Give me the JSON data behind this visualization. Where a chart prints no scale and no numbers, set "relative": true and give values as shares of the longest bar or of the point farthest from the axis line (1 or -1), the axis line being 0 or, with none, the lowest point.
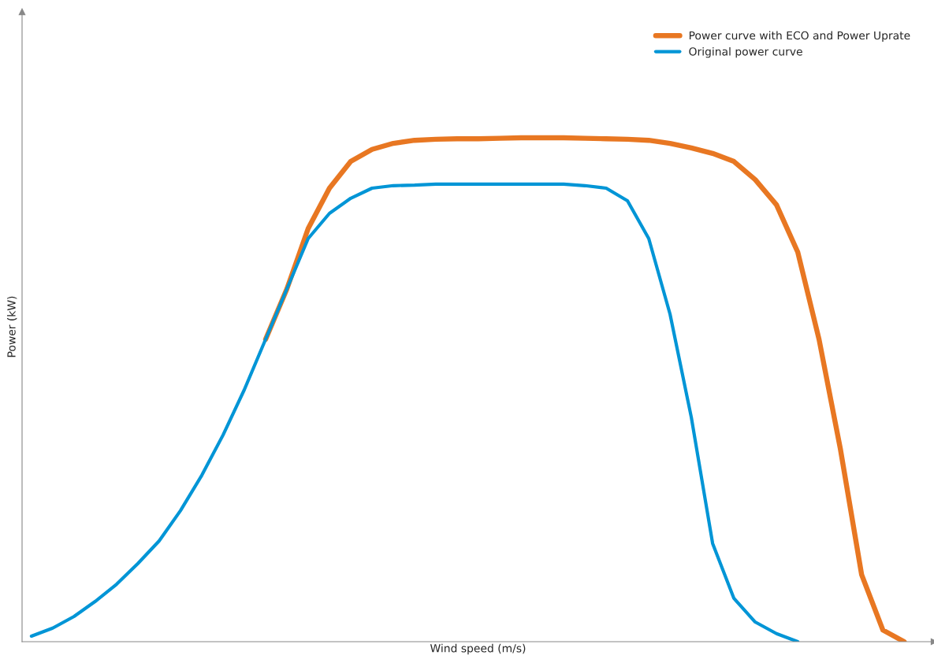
{
  "chart_data": {
    "type": "line",
    "relative": true,
    "xlabel": "Wind speed (m/s)",
    "ylabel": "Power (kW)",
    "legend": "top right",
    "line_style": "solid",
    "marker": "none",
    "categories": [
      null,
      null,
      null,
      null,
      null,
      null,
      null,
      null,
      null,
      null,
      null,
      null,
      null,
      null,
      null,
      null,
      null,
      null,
      null,
      null,
      null,
      null,
      null,
      null,
      null,
      null,
      null,
      null,
      null,
      null,
      null,
      null,
      null,
      null,
      null,
      null,
      null,
      null,
      null,
      null,
      null,
      null
    ],
    "series": [
      {
        "name": "Power curve with ECO and Power Uprate",
        "color": "#e87722",
        "values": [
          null,
          null,
          null,
          null,
          null,
          null,
          null,
          null,
          null,
          null,
          null,
          0.6,
          0.7,
          0.82,
          0.9,
          0.953,
          0.977,
          0.989,
          0.995,
          0.997,
          0.998,
          0.998,
          0.999,
          1,
          1,
          1,
          0.999,
          0.998,
          0.997,
          0.995,
          0.989,
          0.98,
          0.969,
          0.953,
          0.917,
          0.867,
          0.773,
          0.6,
          0.383,
          0.133,
          0.023,
          0
        ]
      },
      {
        "name": "Original power curve",
        "color": "#0095d6",
        "values": [
          0.011,
          0.027,
          0.05,
          0.08,
          0.114,
          0.155,
          0.2,
          0.26,
          0.33,
          0.41,
          0.5,
          0.6,
          0.7,
          0.8,
          0.85,
          0.88,
          0.9,
          0.905,
          0.906,
          0.908,
          0.908,
          0.908,
          0.908,
          0.908,
          0.908,
          0.908,
          0.905,
          0.9,
          0.875,
          0.8,
          0.65,
          0.445,
          0.195,
          0.086,
          0.039,
          0.016,
          0,
          null,
          null,
          null,
          null,
          null
        ]
      }
    ]
  }
}
